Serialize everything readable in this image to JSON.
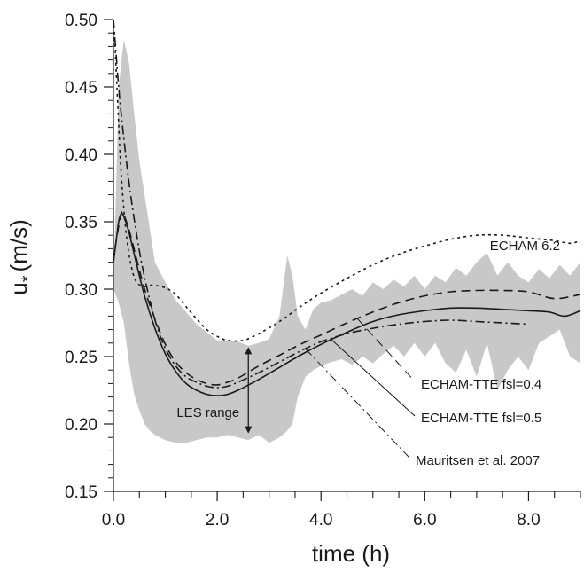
{
  "chart_data": {
    "type": "line",
    "xlabel": "time (h)",
    "ylabel": "u",
    "ylabel_subscript": "*",
    "ylabel_unit": "(m/s)",
    "xlim": [
      0,
      9
    ],
    "ylim": [
      0.15,
      0.5
    ],
    "xticks": [
      {
        "value": 0,
        "label": "0.0"
      },
      {
        "value": 2,
        "label": "2.0"
      },
      {
        "value": 4,
        "label": "4.0"
      },
      {
        "value": 6,
        "label": "6.0"
      },
      {
        "value": 8,
        "label": "8.0"
      }
    ],
    "yticks": [
      {
        "value": 0.15,
        "label": "0.15"
      },
      {
        "value": 0.2,
        "label": "0.20"
      },
      {
        "value": 0.25,
        "label": "0.25"
      },
      {
        "value": 0.3,
        "label": "0.30"
      },
      {
        "value": 0.35,
        "label": "0.35"
      },
      {
        "value": 0.4,
        "label": "0.40"
      },
      {
        "value": 0.45,
        "label": "0.45"
      },
      {
        "value": 0.5,
        "label": "0.50"
      }
    ],
    "x_minor_step": 0.5,
    "y_minor_step": 0.01,
    "grid": false,
    "band": {
      "name": "LES range",
      "color": "#c8c8c8",
      "x": [
        0,
        0.1,
        0.2,
        0.3,
        0.4,
        0.5,
        0.6,
        0.7,
        0.8,
        1.0,
        1.2,
        1.4,
        1.6,
        1.8,
        2.0,
        2.2,
        2.4,
        2.6,
        2.8,
        3.0,
        3.2,
        3.35,
        3.45,
        3.55,
        3.7,
        3.85,
        4.0,
        4.2,
        4.4,
        4.6,
        4.8,
        5.0,
        5.2,
        5.4,
        5.6,
        5.8,
        6.0,
        6.2,
        6.4,
        6.6,
        6.8,
        7.0,
        7.2,
        7.4,
        7.6,
        7.8,
        8.0,
        8.2,
        8.4,
        8.6,
        8.8,
        9.0
      ],
      "upper": [
        0.3,
        0.45,
        0.485,
        0.468,
        0.43,
        0.395,
        0.37,
        0.345,
        0.32,
        0.305,
        0.292,
        0.283,
        0.274,
        0.268,
        0.262,
        0.262,
        0.261,
        0.258,
        0.26,
        0.263,
        0.28,
        0.325,
        0.31,
        0.28,
        0.27,
        0.285,
        0.29,
        0.292,
        0.296,
        0.3,
        0.295,
        0.305,
        0.3,
        0.307,
        0.302,
        0.31,
        0.3,
        0.31,
        0.305,
        0.316,
        0.31,
        0.32,
        0.327,
        0.31,
        0.32,
        0.31,
        0.305,
        0.315,
        0.308,
        0.318,
        0.31,
        0.32
      ],
      "lower": [
        0.3,
        0.29,
        0.275,
        0.245,
        0.222,
        0.21,
        0.2,
        0.195,
        0.192,
        0.188,
        0.186,
        0.186,
        0.188,
        0.19,
        0.19,
        0.192,
        0.19,
        0.188,
        0.192,
        0.186,
        0.19,
        0.195,
        0.2,
        0.22,
        0.235,
        0.24,
        0.243,
        0.246,
        0.248,
        0.244,
        0.25,
        0.245,
        0.252,
        0.258,
        0.25,
        0.26,
        0.25,
        0.26,
        0.245,
        0.238,
        0.255,
        0.235,
        0.26,
        0.225,
        0.24,
        0.25,
        0.24,
        0.26,
        0.265,
        0.27,
        0.25,
        0.245
      ]
    },
    "series": [
      {
        "name": "ECHAM 6.2",
        "dash": "3,4",
        "x": [
          0,
          0.03,
          0.08,
          0.15,
          0.25,
          0.35,
          0.45,
          0.6,
          0.75,
          1.0,
          1.2,
          1.4,
          1.6,
          1.8,
          2.0,
          2.2,
          2.5,
          2.8,
          3.2,
          3.6,
          4.0,
          4.5,
          5.0,
          5.5,
          6.0,
          6.5,
          7.0,
          7.5,
          8.0,
          8.5,
          8.8,
          9.0
        ],
        "y": [
          0.5,
          0.48,
          0.44,
          0.385,
          0.34,
          0.316,
          0.305,
          0.302,
          0.303,
          0.301,
          0.296,
          0.287,
          0.278,
          0.27,
          0.265,
          0.262,
          0.262,
          0.267,
          0.276,
          0.287,
          0.297,
          0.308,
          0.318,
          0.326,
          0.332,
          0.337,
          0.34,
          0.34,
          0.338,
          0.336,
          0.334,
          0.336
        ]
      },
      {
        "name": "ECHAM-TTE fsl=0.4",
        "dash": "10,6",
        "x": [
          0,
          0.05,
          0.15,
          0.2,
          0.3,
          0.45,
          0.6,
          0.8,
          1.0,
          1.2,
          1.4,
          1.6,
          1.8,
          2.0,
          2.2,
          2.4,
          2.8,
          3.2,
          3.6,
          4.0,
          4.5,
          5.0,
          5.5,
          6.0,
          6.5,
          7.0,
          7.5,
          8.0,
          8.5,
          9.0
        ],
        "y": [
          0.32,
          0.335,
          0.356,
          0.355,
          0.344,
          0.322,
          0.3,
          0.278,
          0.259,
          0.246,
          0.238,
          0.233,
          0.23,
          0.229,
          0.231,
          0.234,
          0.243,
          0.251,
          0.259,
          0.266,
          0.275,
          0.283,
          0.29,
          0.295,
          0.298,
          0.299,
          0.299,
          0.298,
          0.293,
          0.296
        ]
      },
      {
        "name": "ECHAM-TTE fsl=0.5",
        "dash": "",
        "x": [
          0,
          0.05,
          0.1,
          0.15,
          0.2,
          0.3,
          0.45,
          0.6,
          0.8,
          1.0,
          1.2,
          1.4,
          1.6,
          1.8,
          2.0,
          2.2,
          2.4,
          2.8,
          3.2,
          3.6,
          4.0,
          4.5,
          5.0,
          5.5,
          6.0,
          6.5,
          7.0,
          7.5,
          8.0,
          8.4,
          8.7,
          9.0
        ],
        "y": [
          0.32,
          0.335,
          0.35,
          0.356,
          0.354,
          0.342,
          0.318,
          0.295,
          0.271,
          0.252,
          0.239,
          0.23,
          0.225,
          0.222,
          0.221,
          0.222,
          0.225,
          0.233,
          0.242,
          0.251,
          0.259,
          0.268,
          0.276,
          0.281,
          0.284,
          0.286,
          0.286,
          0.285,
          0.284,
          0.283,
          0.28,
          0.284
        ]
      },
      {
        "name": "Mauritsen et al. 2007",
        "dash": "10,4,2,4",
        "x": [
          0,
          0.05,
          0.1,
          0.15,
          0.25,
          0.35,
          0.45,
          0.55,
          0.7,
          0.85,
          1.0,
          1.2,
          1.4,
          1.6,
          1.8,
          2.0,
          2.2,
          2.4,
          2.8,
          3.2,
          3.6,
          4.0,
          4.5,
          5.0,
          5.5,
          6.0,
          6.5,
          7.0,
          7.5,
          8.0
        ],
        "y": [
          0.5,
          0.475,
          0.45,
          0.43,
          0.395,
          0.365,
          0.34,
          0.318,
          0.292,
          0.271,
          0.256,
          0.243,
          0.235,
          0.231,
          0.228,
          0.227,
          0.228,
          0.231,
          0.238,
          0.246,
          0.254,
          0.261,
          0.267,
          0.271,
          0.274,
          0.276,
          0.277,
          0.276,
          0.275,
          0.274
        ]
      }
    ],
    "annotations": [
      {
        "text": "ECHAM 6.2",
        "series": 0
      },
      {
        "text": "ECHAM-TTE fsl=0.4",
        "series": 1
      },
      {
        "text": "ECHAM-TTE fsl=0.5",
        "series": 2
      },
      {
        "text": "Mauritsen et al. 2007",
        "series": 3
      }
    ],
    "range_arrow": {
      "x": 2.6,
      "y_low": 0.193,
      "y_high": 0.257,
      "label": "LES range"
    }
  }
}
